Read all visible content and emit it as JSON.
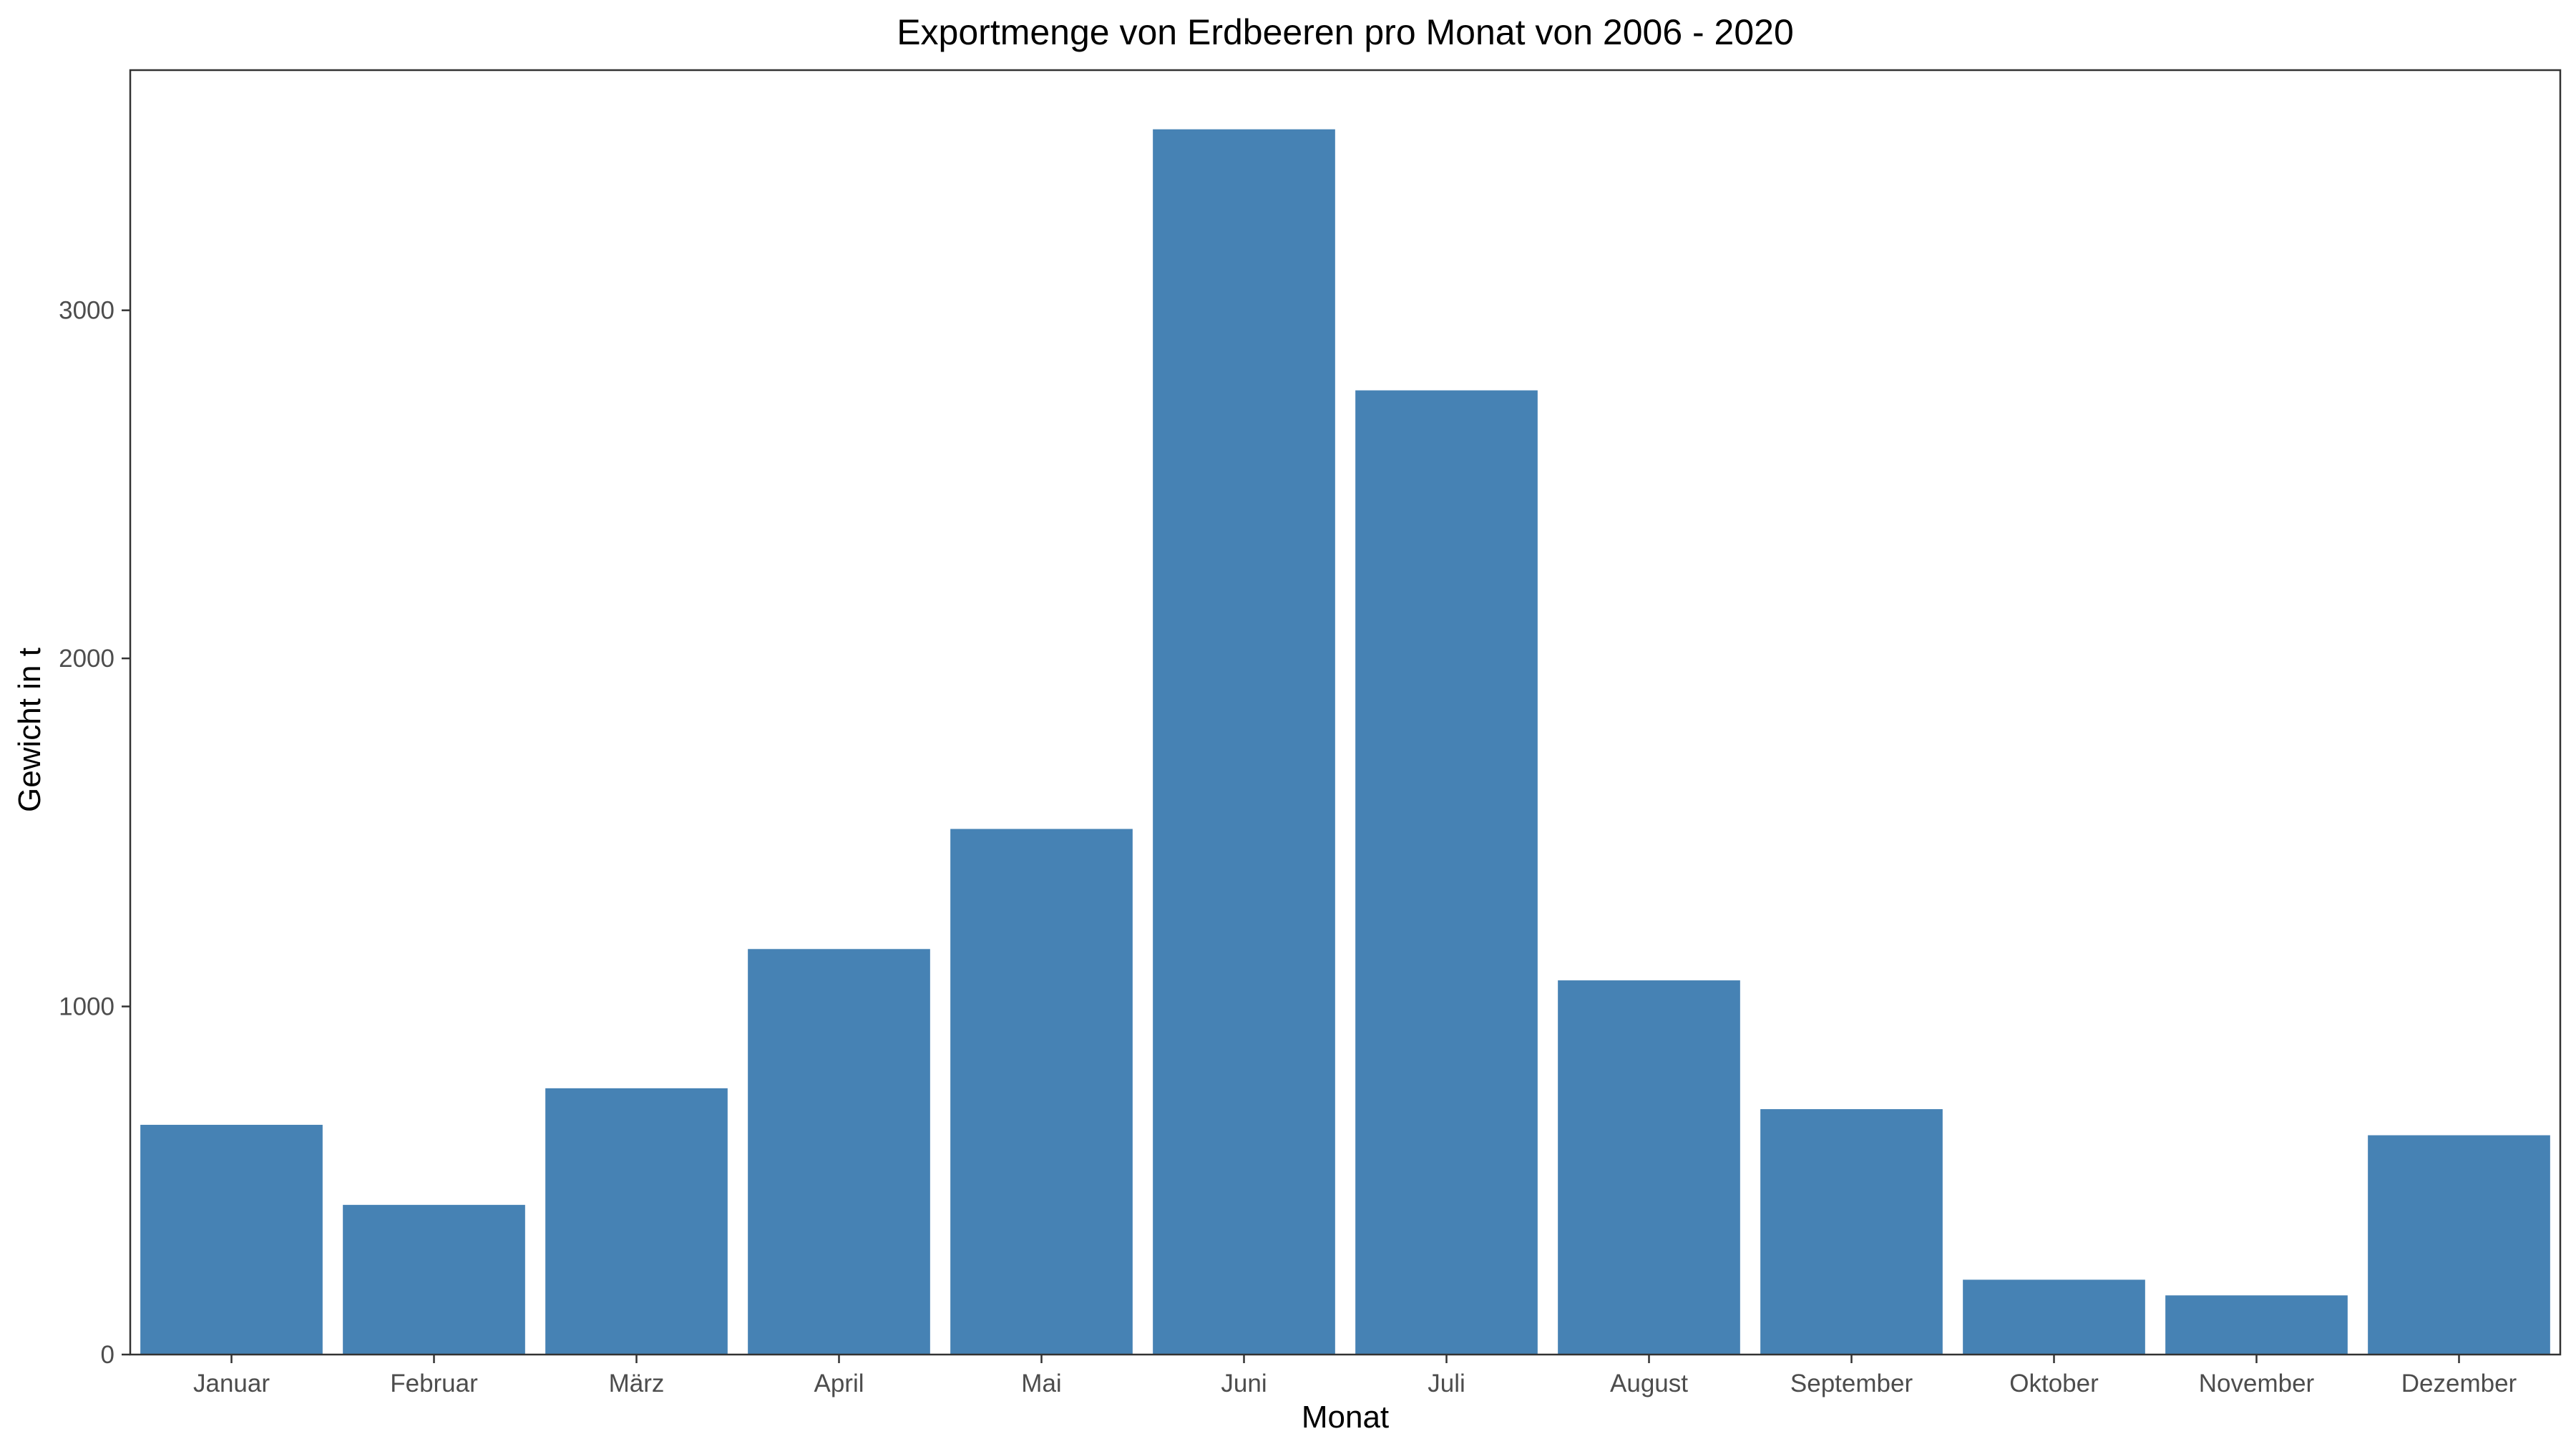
{
  "chart_data": {
    "type": "bar",
    "title": "Exportmenge von Erdbeeren pro Monat von 2006 - 2020",
    "xlabel": "Monat",
    "ylabel": "Gewicht in t",
    "categories": [
      "Januar",
      "Februar",
      "März",
      "April",
      "Mai",
      "Juni",
      "Juli",
      "August",
      "September",
      "Oktober",
      "November",
      "Dezember"
    ],
    "values": [
      660,
      430,
      765,
      1165,
      1510,
      3520,
      2770,
      1075,
      705,
      215,
      170,
      630
    ],
    "ylim": [
      0,
      3690
    ],
    "yticks": [
      0,
      1000,
      2000,
      3000
    ],
    "ytick_labels": [
      "0",
      "1000",
      "2000",
      "3000"
    ],
    "grid": false,
    "legend": "none",
    "bar_color": "#4682B4",
    "axis_color": "#333333"
  }
}
